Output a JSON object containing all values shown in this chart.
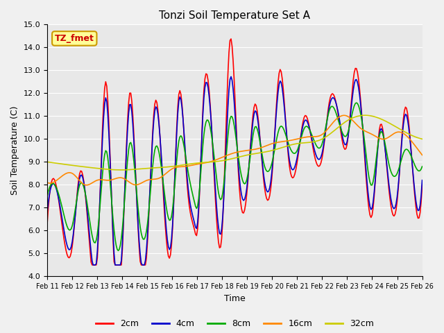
{
  "title": "Tonzi Soil Temperature Set A",
  "xlabel": "Time",
  "ylabel": "Soil Temperature (C)",
  "ylim": [
    4.0,
    15.0
  ],
  "yticks": [
    4.0,
    5.0,
    6.0,
    7.0,
    8.0,
    9.0,
    10.0,
    11.0,
    12.0,
    13.0,
    14.0,
    15.0
  ],
  "x_labels": [
    "Feb 11",
    "Feb 12",
    "Feb 13",
    "Feb 14",
    "Feb 15",
    "Feb 16",
    "Feb 17",
    "Feb 18",
    "Feb 19",
    "Feb 20",
    "Feb 21",
    "Feb 22",
    "Feb 23",
    "Feb 24",
    "Feb 25",
    "Feb 26"
  ],
  "annotation_text": "TZ_fmet",
  "annotation_bg": "#ffff99",
  "annotation_border": "#cc9900",
  "colors": {
    "2cm": "#ff0000",
    "4cm": "#0000cc",
    "8cm": "#00aa00",
    "16cm": "#ff8800",
    "32cm": "#cccc00"
  },
  "bg_color": "#e8e8e8"
}
